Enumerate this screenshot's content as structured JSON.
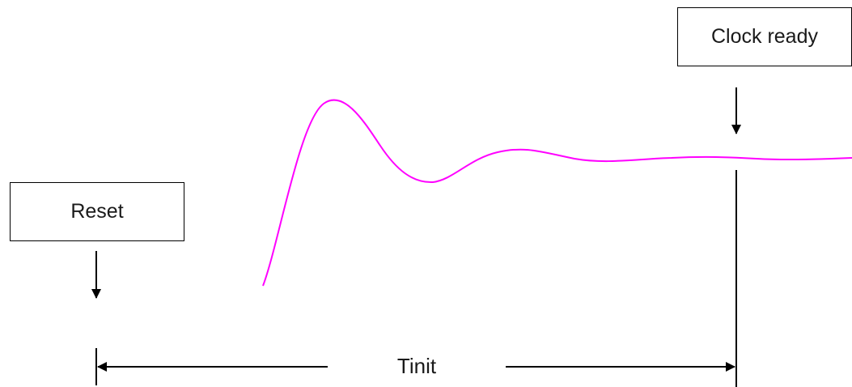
{
  "labels": {
    "reset": "Reset",
    "clock_ready": "Clock ready",
    "duration": "Tinit"
  },
  "colors": {
    "waveform": "#ff00ff",
    "lines": "#000000"
  }
}
